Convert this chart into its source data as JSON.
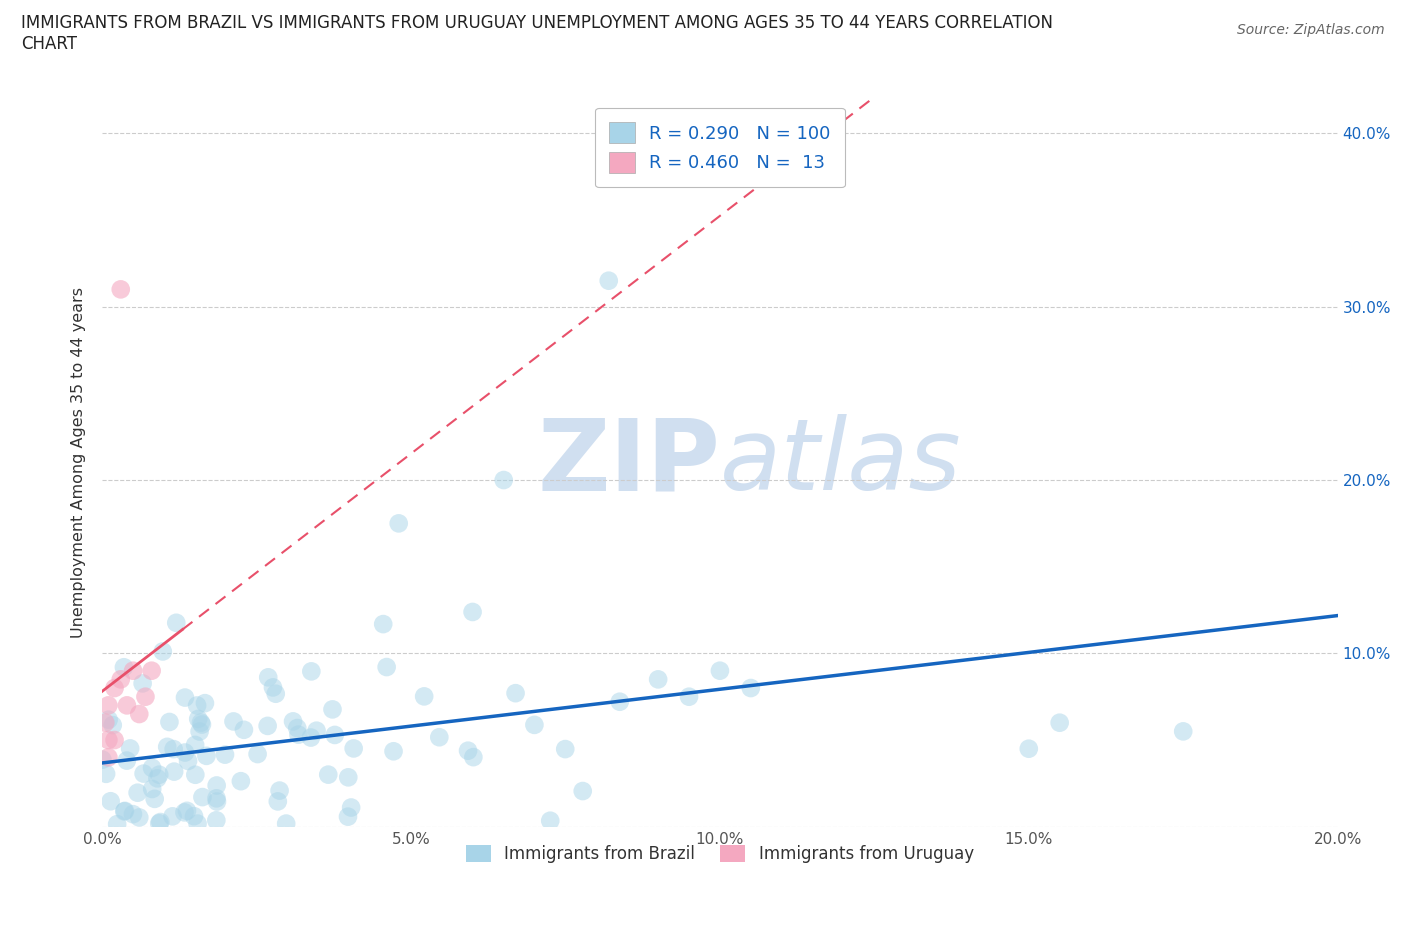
{
  "title": "IMMIGRANTS FROM BRAZIL VS IMMIGRANTS FROM URUGUAY UNEMPLOYMENT AMONG AGES 35 TO 44 YEARS CORRELATION\nCHART",
  "source": "Source: ZipAtlas.com",
  "ylabel": "Unemployment Among Ages 35 to 44 years",
  "brazil_R": 0.29,
  "brazil_N": 100,
  "uruguay_R": 0.46,
  "uruguay_N": 13,
  "brazil_color": "#a8d4e8",
  "uruguay_color": "#f4a8c0",
  "brazil_line_color": "#1565c0",
  "uruguay_line_color": "#e8506a",
  "watermark_zip": "ZIP",
  "watermark_atlas": "atlas",
  "watermark_color": "#d0dff0",
  "xlim": [
    0.0,
    0.2
  ],
  "ylim": [
    0.0,
    0.42
  ],
  "xticks": [
    0.0,
    0.05,
    0.1,
    0.15,
    0.2
  ],
  "yticks": [
    0.0,
    0.1,
    0.2,
    0.3,
    0.4
  ],
  "xtick_labels": [
    "0.0%",
    "5.0%",
    "10.0%",
    "15.0%",
    "20.0%"
  ],
  "left_ytick_labels": [
    "",
    "",
    "",
    "",
    ""
  ],
  "right_ytick_labels": [
    "",
    "10.0%",
    "20.0%",
    "30.0%",
    "40.0%"
  ],
  "legend_brazil": "Immigrants from Brazil",
  "legend_uruguay": "Immigrants from Uruguay"
}
